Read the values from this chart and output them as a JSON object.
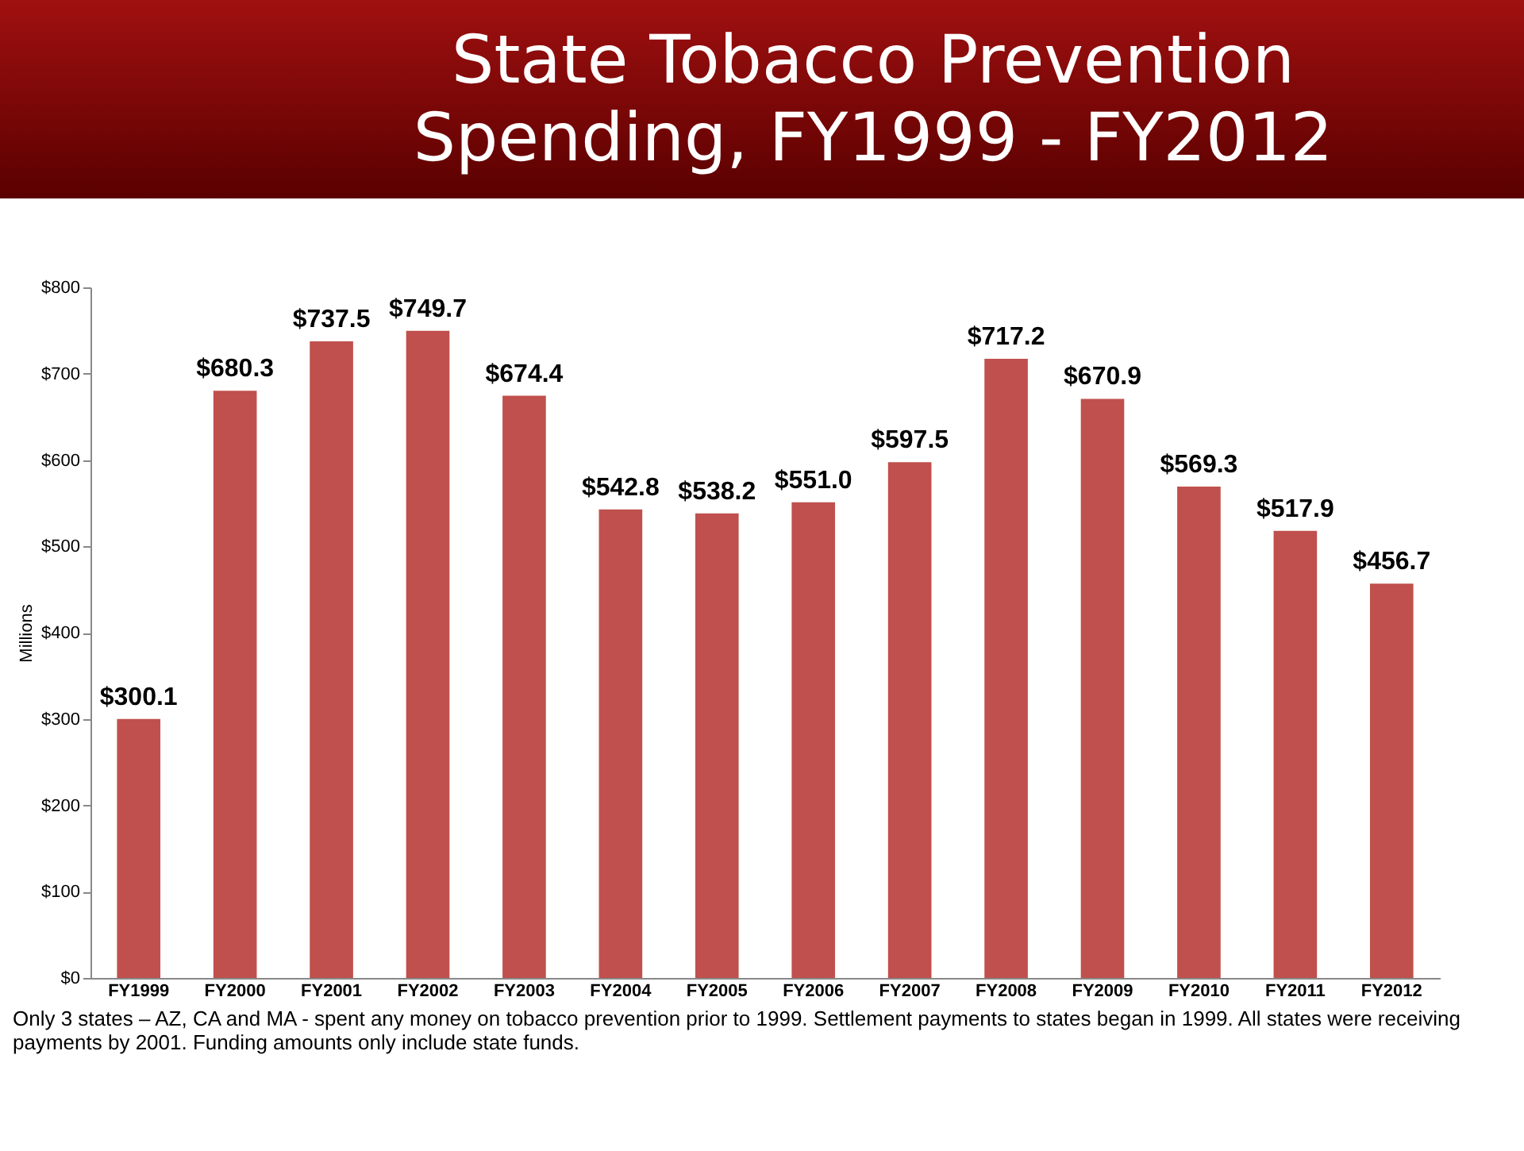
{
  "chart_data": {
    "type": "bar",
    "title": "State Tobacco Prevention Spending, FY1999 - FY2012",
    "ylabel": "Millions",
    "categories": [
      "FY1999",
      "FY2000",
      "FY2001",
      "FY2002",
      "FY2003",
      "FY2004",
      "FY2005",
      "FY2006",
      "FY2007",
      "FY2008",
      "FY2009",
      "FY2010",
      "FY2011",
      "FY2012"
    ],
    "values": [
      300.1,
      680.3,
      737.5,
      749.7,
      674.4,
      542.8,
      538.2,
      551.0,
      597.5,
      717.2,
      670.9,
      569.3,
      517.9,
      456.7
    ],
    "value_labels": [
      "$300.1",
      "$680.3",
      "$737.5",
      "$749.7",
      "$674.4",
      "$542.8",
      "$538.2",
      "$551.0",
      "$597.5",
      "$717.2",
      "$670.9",
      "$569.3",
      "$517.9",
      "$456.7"
    ],
    "color": "#c0504d",
    "ylim": [
      0,
      800
    ],
    "yticks": [
      {
        "value": 0,
        "label": "$0"
      },
      {
        "value": 100,
        "label": "$100"
      },
      {
        "value": 200,
        "label": "$200"
      },
      {
        "value": 300,
        "label": "$300"
      },
      {
        "value": 400,
        "label": "$400"
      },
      {
        "value": 500,
        "label": "$500"
      },
      {
        "value": 600,
        "label": "$600"
      },
      {
        "value": 700,
        "label": "$700"
      },
      {
        "value": 800,
        "label": "$800"
      }
    ],
    "annotations": [
      "Only 3 states – AZ, CA and MA - spent any money on tobacco prevention prior to 1999.  Settlement payments to states began in 1999.  All states were receiving payments by 2001. Funding amounts only include state funds."
    ]
  }
}
